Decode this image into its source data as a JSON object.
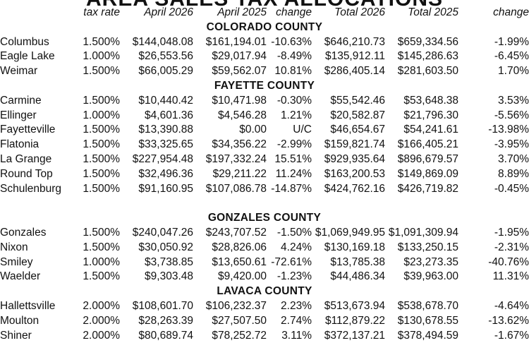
{
  "title": "AREA SALES TAX ALLOCATIONS",
  "headers": [
    "",
    "tax rate",
    "April 2026",
    "April 2025",
    "change",
    "Total 2026",
    "Total 2025",
    "change"
  ],
  "groups": [
    {
      "county": "COLORADO COUNTY",
      "rows": [
        [
          "Columbus",
          "1.500%",
          "$144,048.08",
          "$161,194.01",
          "-10.63%",
          "$646,210.73",
          "$659,334.56",
          "-1.99%"
        ],
        [
          "Eagle Lake",
          "1.000%",
          "$26,553.56",
          "$29,017.94",
          "-8.49%",
          "$135,912.11",
          "$145,286.63",
          "-6.45%"
        ],
        [
          "Weimar",
          "1.500%",
          "$66,005.29",
          "$59,562.07",
          "10.81%",
          "$286,405.14",
          "$281,603.50",
          "1.70%"
        ]
      ]
    },
    {
      "county": "FAYETTE COUNTY",
      "rows": [
        [
          "Carmine",
          "1.500%",
          "$10,440.42",
          "$10,471.98",
          "-0.30%",
          "$55,542.46",
          "$53,648.38",
          "3.53%"
        ],
        [
          "Ellinger",
          "1.000%",
          "$4,601.36",
          "$4,546.28",
          "1.21%",
          "$20,582.87",
          "$21,796.30",
          "-5.56%"
        ],
        [
          "Fayetteville",
          "1.500%",
          "$13,390.88",
          "$0.00",
          "U/C",
          "$46,654.67",
          "$54,241.61",
          "-13.98%"
        ],
        [
          "Flatonia",
          "1.500%",
          "$33,325.65",
          "$34,356.22",
          "-2.99%",
          "$159,821.74",
          "$166,405.21",
          "-3.95%"
        ],
        [
          "La Grange",
          "1.500%",
          "$227,954.48",
          "$197,332.24",
          "15.51%",
          "$929,935.64",
          "$896,679.57",
          "3.70%"
        ],
        [
          "Round Top",
          "1.500%",
          "$32,496.36",
          "$29,211.22",
          "11.24%",
          "$163,200.53",
          "$149,869.09",
          "8.89%"
        ],
        [
          "Schulenburg",
          "1.500%",
          "$91,160.95",
          "$107,086.78",
          "-14.87%",
          "$424,762.16",
          "$426,719.82",
          "-0.45%"
        ]
      ]
    },
    {
      "county": "GONZALES COUNTY",
      "rows": [
        [
          "Gonzales",
          "1.500%",
          "$240,047.26",
          "$243,707.52",
          "-1.50%",
          "$1,069,949.95",
          "$1,091,309.94",
          "-1.95%"
        ],
        [
          "Nixon",
          "1.500%",
          "$30,050.92",
          "$28,826.06",
          "4.24%",
          "$130,169.18",
          "$133,250.15",
          "-2.31%"
        ],
        [
          "Smiley",
          "1.000%",
          "$3,738.85",
          "$13,650.61",
          "-72.61%",
          "$13,785.38",
          "$23,273.35",
          "-40.76%"
        ],
        [
          "Waelder",
          "1.500%",
          "$9,303.48",
          "$9,420.00",
          "-1.23%",
          "$44,486.34",
          "$39,963.00",
          "11.31%"
        ]
      ]
    },
    {
      "county": "LAVACA COUNTY",
      "rows": [
        [
          "Hallettsville",
          "2.000%",
          "$108,601.70",
          "$106,232.37",
          "2.23%",
          "$513,673.94",
          "$538,678.70",
          "-4.64%"
        ],
        [
          "Moulton",
          "2.000%",
          "$28,263.39",
          "$27,507.50",
          "2.74%",
          "$112,879.22",
          "$130,678.55",
          "-13.62%"
        ],
        [
          "Shiner",
          "2.000%",
          "$80,689.74",
          "$78,252.72",
          "3.11%",
          "$372,137.21",
          "$378,494.59",
          "-1.67%"
        ]
      ]
    }
  ]
}
